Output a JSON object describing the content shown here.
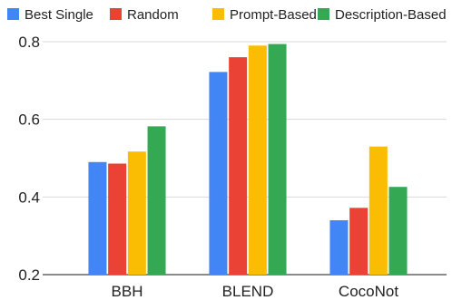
{
  "chart_data": {
    "type": "bar",
    "categories": [
      "BBH",
      "BLEND",
      "CocoNot"
    ],
    "series": [
      {
        "name": "Best Single",
        "color": "#4285F4",
        "values": [
          0.49,
          0.722,
          0.34
        ]
      },
      {
        "name": "Random",
        "color": "#EA4335",
        "values": [
          0.486,
          0.76,
          0.372
        ]
      },
      {
        "name": "Prompt-Based",
        "color": "#FBBC04",
        "values": [
          0.517,
          0.79,
          0.53
        ]
      },
      {
        "name": "Description-Based",
        "color": "#34A853",
        "values": [
          0.582,
          0.794,
          0.426
        ]
      }
    ],
    "ylim": [
      0.2,
      0.8
    ],
    "yticks": [
      0.2,
      0.4,
      0.6,
      0.8
    ],
    "ytick_labels": [
      "0.2",
      "0.4",
      "0.6",
      "0.8"
    ],
    "title": "",
    "xlabel": "",
    "ylabel": "",
    "grid": true,
    "legend_position": "top"
  }
}
